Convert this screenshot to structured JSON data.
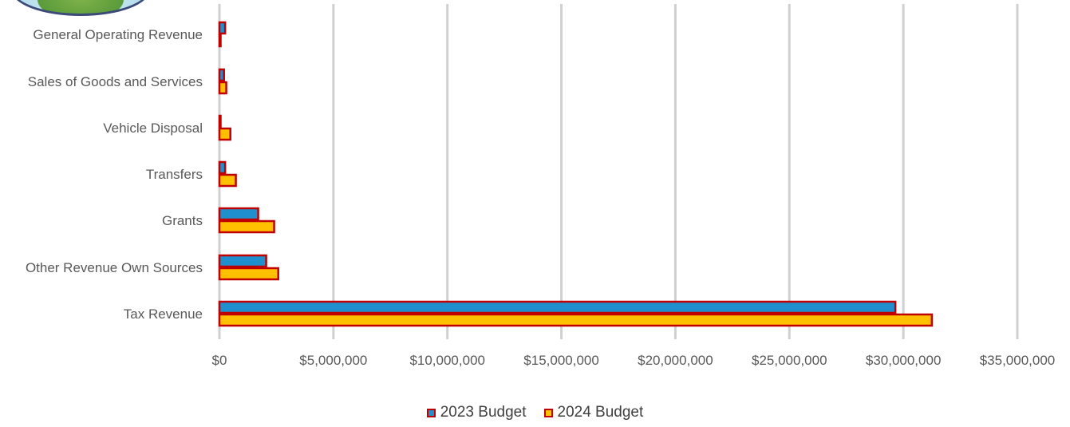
{
  "chart_data": {
    "type": "bar",
    "orientation": "horizontal",
    "categories": [
      "General Operating Revenue",
      "Sales of Goods and Services",
      "Vehicle Disposal",
      "Transfers",
      "Grants",
      "Other Revenue Own Sources",
      "Tax Revenue"
    ],
    "series": [
      {
        "name": "2023 Budget",
        "color": "#1f8fcd",
        "values": [
          250000,
          200000,
          0,
          250000,
          1700000,
          2050000,
          29650000
        ]
      },
      {
        "name": "2024 Budget",
        "color": "#ffc000",
        "values": [
          0,
          300000,
          480000,
          720000,
          2400000,
          2580000,
          31250000
        ]
      }
    ],
    "bar_outline_color": "#c00000",
    "xlim": [
      0,
      35000000
    ],
    "x_ticks": [
      0,
      5000000,
      10000000,
      15000000,
      20000000,
      25000000,
      30000000,
      35000000
    ],
    "x_tick_labels": [
      "$0",
      "$5,000,000",
      "$10,000,000",
      "$15,000,000",
      "$20,000,000",
      "$25,000,000",
      "$30,000,000",
      "$35,000,000"
    ],
    "grid": "vertical",
    "legend_position": "bottom"
  }
}
